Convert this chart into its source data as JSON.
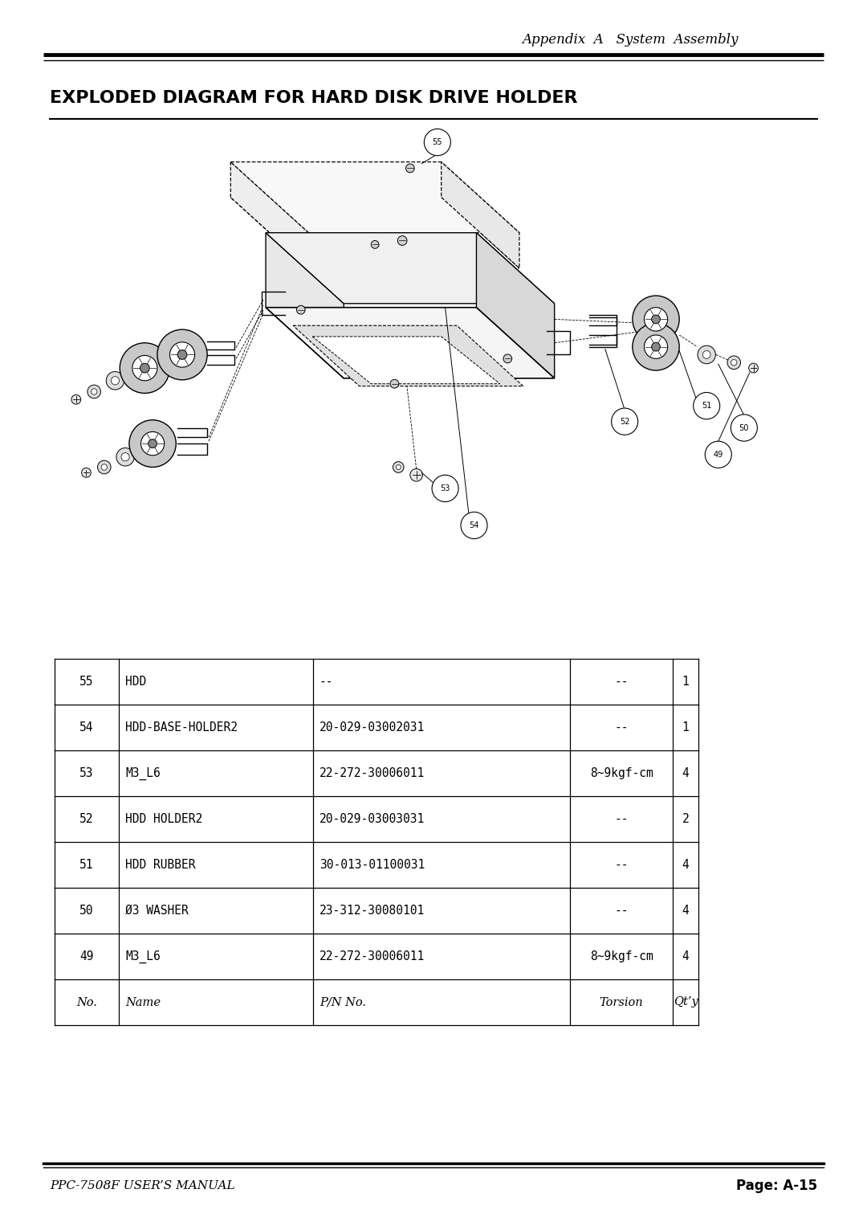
{
  "page_bg": "#ffffff",
  "header_text": "Appendix  A   System  Assembly",
  "header_font_size": 12,
  "title_text": "EXPLODED DIAGRAM FOR HARD DISK DRIVE HOLDER",
  "title_font_size": 16,
  "footer_left": "PPC-7508F USER’S MANUAL",
  "footer_right": "Page: A-15",
  "footer_font_size": 11,
  "table_data": [
    [
      "55",
      "HDD",
      "--",
      "--",
      "1"
    ],
    [
      "54",
      "HDD-BASE-HOLDER2",
      "20-029-03002031",
      "--",
      "1"
    ],
    [
      "53",
      "M3_L6",
      "22-272-30006011",
      "8~9kgf-cm",
      "4"
    ],
    [
      "52",
      "HDD HOLDER2",
      "20-029-03003031",
      "--",
      "2"
    ],
    [
      "51",
      "HDD RUBBER",
      "30-013-01100031",
      "--",
      "4"
    ],
    [
      "50",
      "Ø3 WASHER",
      "23-312-30080101",
      "--",
      "4"
    ],
    [
      "49",
      "M3_L6",
      "22-272-30006011",
      "8~9kgf-cm",
      "4"
    ],
    [
      "No.",
      "Name",
      "P/N No.",
      "Torsion",
      "Qt’y"
    ]
  ],
  "table_font_size": 10.5
}
